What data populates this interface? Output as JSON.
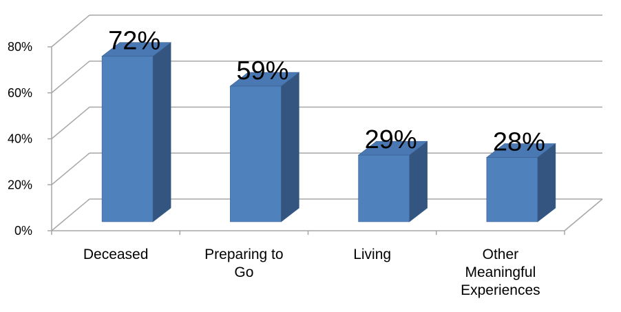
{
  "chart_data": {
    "type": "bar3d",
    "categories": [
      "Deceased",
      "Preparing to Go",
      "Living",
      "Other Meaningful Experiences"
    ],
    "values": [
      72,
      59,
      29,
      28
    ],
    "value_labels": [
      "72%",
      "59%",
      "29%",
      "28%"
    ],
    "color": "#4f81bd",
    "ylim": [
      0,
      80
    ],
    "yticks": [
      {
        "value": 0,
        "label": "0%"
      },
      {
        "value": 20,
        "label": "20%"
      },
      {
        "value": 40,
        "label": "40%"
      },
      {
        "value": 60,
        "label": "60%"
      },
      {
        "value": 80,
        "label": "80%"
      }
    ],
    "grid": true
  }
}
